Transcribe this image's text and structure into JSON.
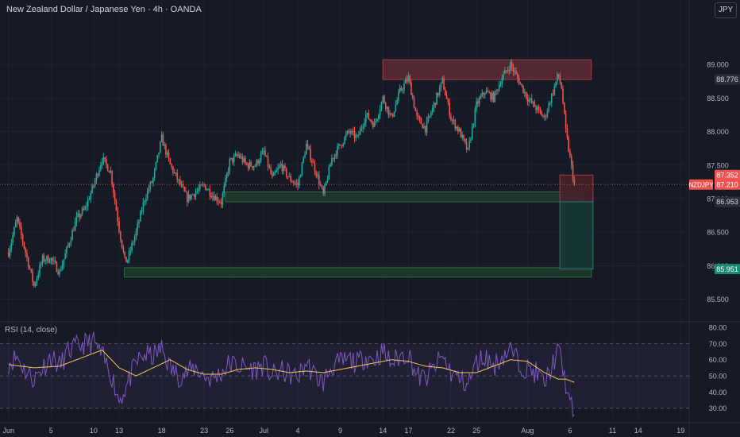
{
  "header": {
    "title": "New Zealand Dollar / Japanese Yen · 4h · OANDA",
    "currency_button": "JPY"
  },
  "colors": {
    "background": "#161a25",
    "up": "#26a69a",
    "down": "#ef5350",
    "grid": "#1f2330",
    "axis_text": "#b2b5be",
    "resistance_zone": "#5e2a34",
    "support_zone": "#1f3b2c",
    "target_zone": "#173a38",
    "stop_zone": "#4a2229",
    "rsi_line": "#7e57c2",
    "rsi_ma": "#f2c94c"
  },
  "chart_data": [
    {
      "type": "candlestick",
      "title": "New Zealand Dollar / Japanese Yen · 4h · OANDA",
      "symbol": "NZDJPY",
      "currency": "JPY",
      "y_ticks": [
        85.5,
        86.0,
        86.5,
        87.0,
        87.5,
        88.0,
        88.5,
        89.0
      ],
      "y_tick_labels": [
        "85.500",
        "86.000",
        "86.500",
        "87.000",
        "87.500",
        "88.000",
        "88.500",
        "89.000"
      ],
      "ylim": [
        85.2,
        89.7
      ],
      "x_tick_labels": [
        "Jun",
        "5",
        "10",
        "13",
        "18",
        "23",
        "26",
        "Jul",
        "4",
        "9",
        "14",
        "17",
        "22",
        "25",
        "Aug",
        "6",
        "11",
        "14",
        "19"
      ],
      "x_tick_days": [
        0,
        5,
        10,
        13,
        18,
        23,
        26,
        30,
        34,
        39,
        44,
        47,
        52,
        55,
        61,
        66,
        71,
        74,
        79
      ],
      "price_labels": [
        {
          "text": "88.776",
          "value": 88.776,
          "style": "neutral"
        },
        {
          "text": "87.352",
          "value": 87.352,
          "style": "down"
        },
        {
          "text": "87.210",
          "value": 87.21,
          "style": "down",
          "tag": "NZDJPY"
        },
        {
          "text": "86.953",
          "value": 86.953,
          "style": "neutral"
        },
        {
          "text": "85.951",
          "value": 85.951,
          "style": "up"
        }
      ],
      "last_price": 87.21,
      "zones": [
        {
          "name": "resistance",
          "start_day": 44,
          "end_day": 68.5,
          "low": 88.776,
          "high": 89.07
        },
        {
          "name": "support-upper",
          "start_day": 25.5,
          "end_day": 67.5,
          "low": 86.953,
          "high": 87.1
        },
        {
          "name": "support-lower",
          "start_day": 13.6,
          "end_day": 68.5,
          "low": 85.83,
          "high": 85.97
        },
        {
          "name": "stop",
          "start_day": 64.8,
          "end_day": 68.7,
          "low": 86.953,
          "high": 87.352
        },
        {
          "name": "target",
          "start_day": 64.8,
          "end_day": 68.7,
          "low": 85.951,
          "high": 86.953
        }
      ],
      "close_path": [
        [
          0,
          86.2
        ],
        [
          1,
          86.7
        ],
        [
          2,
          86.2
        ],
        [
          3,
          85.7
        ],
        [
          4,
          86.1
        ],
        [
          5,
          86.1
        ],
        [
          6,
          85.9
        ],
        [
          7,
          86.3
        ],
        [
          8,
          86.7
        ],
        [
          9,
          86.85
        ],
        [
          10,
          87.2
        ],
        [
          11,
          87.6
        ],
        [
          12,
          87.4
        ],
        [
          13,
          86.55
        ],
        [
          13.7,
          86.05
        ],
        [
          14,
          86.1
        ],
        [
          15,
          86.5
        ],
        [
          16,
          87.0
        ],
        [
          17,
          87.3
        ],
        [
          18,
          87.9
        ],
        [
          19,
          87.5
        ],
        [
          20,
          87.25
        ],
        [
          21,
          87.0
        ],
        [
          22,
          87.1
        ],
        [
          23,
          87.2
        ],
        [
          24,
          87.05
        ],
        [
          25,
          86.95
        ],
        [
          26,
          87.55
        ],
        [
          27,
          87.65
        ],
        [
          28,
          87.5
        ],
        [
          29,
          87.5
        ],
        [
          30,
          87.7
        ],
        [
          31,
          87.3
        ],
        [
          32,
          87.5
        ],
        [
          33,
          87.3
        ],
        [
          34,
          87.2
        ],
        [
          35,
          87.8
        ],
        [
          36,
          87.45
        ],
        [
          37,
          87.05
        ],
        [
          38,
          87.6
        ],
        [
          39,
          87.8
        ],
        [
          40,
          88.0
        ],
        [
          41,
          87.9
        ],
        [
          42,
          88.25
        ],
        [
          43,
          88.1
        ],
        [
          44,
          88.5
        ],
        [
          45,
          88.2
        ],
        [
          46,
          88.6
        ],
        [
          47,
          88.8
        ],
        [
          48,
          88.2
        ],
        [
          49,
          88.05
        ],
        [
          50,
          88.4
        ],
        [
          51,
          88.75
        ],
        [
          52,
          88.2
        ],
        [
          53,
          88.0
        ],
        [
          54,
          87.7
        ],
        [
          55,
          88.4
        ],
        [
          56,
          88.6
        ],
        [
          57,
          88.5
        ],
        [
          58,
          88.8
        ],
        [
          59,
          89.0
        ],
        [
          60,
          88.75
        ],
        [
          61,
          88.5
        ],
        [
          62,
          88.35
        ],
        [
          63,
          88.2
        ],
        [
          64,
          88.6
        ],
        [
          64.6,
          88.85
        ],
        [
          65,
          88.65
        ],
        [
          65.5,
          88.0
        ],
        [
          66,
          87.6
        ],
        [
          66.5,
          87.21
        ]
      ]
    },
    {
      "type": "line",
      "title": "RSI (14, close)",
      "y_ticks": [
        30,
        40,
        50,
        60,
        70,
        80
      ],
      "y_tick_labels": [
        "30.00",
        "40.00",
        "50.00",
        "60.00",
        "70.00",
        "80.00"
      ],
      "ylim": [
        22,
        82
      ],
      "band": [
        30,
        70
      ],
      "mid": 50,
      "series": [
        {
          "values_path": [
            [
              0,
              58
            ],
            [
              1,
              62
            ],
            [
              2,
              53
            ],
            [
              3,
              48
            ],
            [
              4,
              55
            ],
            [
              5,
              62
            ],
            [
              6,
              56
            ],
            [
              7,
              65
            ],
            [
              8,
              68
            ],
            [
              9,
              70
            ],
            [
              10,
              71
            ],
            [
              11,
              62
            ],
            [
              12,
              52
            ],
            [
              13,
              35
            ],
            [
              14,
              45
            ],
            [
              15,
              58
            ],
            [
              16,
              63
            ],
            [
              17,
              62
            ],
            [
              18,
              67
            ],
            [
              19,
              55
            ],
            [
              20,
              50
            ],
            [
              21,
              52
            ],
            [
              22,
              55
            ],
            [
              23,
              50
            ],
            [
              24,
              48
            ],
            [
              25,
              52
            ],
            [
              26,
              58
            ],
            [
              27,
              56
            ],
            [
              28,
              55
            ],
            [
              29,
              54
            ],
            [
              30,
              57
            ],
            [
              31,
              50
            ],
            [
              32,
              53
            ],
            [
              33,
              51
            ],
            [
              34,
              49
            ],
            [
              35,
              58
            ],
            [
              36,
              50
            ],
            [
              37,
              46
            ],
            [
              38,
              56
            ],
            [
              39,
              58
            ],
            [
              40,
              60
            ],
            [
              41,
              58
            ],
            [
              42,
              62
            ],
            [
              43,
              60
            ],
            [
              44,
              65
            ],
            [
              45,
              58
            ],
            [
              46,
              62
            ],
            [
              47,
              64
            ],
            [
              48,
              50
            ],
            [
              49,
              48
            ],
            [
              50,
              55
            ],
            [
              51,
              62
            ],
            [
              52,
              52
            ],
            [
              53,
              48
            ],
            [
              54,
              45
            ],
            [
              55,
              58
            ],
            [
              56,
              62
            ],
            [
              57,
              56
            ],
            [
              58,
              62
            ],
            [
              59,
              66
            ],
            [
              60,
              58
            ],
            [
              61,
              54
            ],
            [
              62,
              52
            ],
            [
              63,
              45
            ],
            [
              64,
              58
            ],
            [
              64.6,
              66
            ],
            [
              65,
              58
            ],
            [
              65.5,
              45
            ],
            [
              66,
              32
            ],
            [
              66.5,
              26
            ]
          ]
        },
        {
          "values_path": [
            [
              0,
              57
            ],
            [
              3,
              55
            ],
            [
              6,
              56
            ],
            [
              9,
              62
            ],
            [
              11,
              66
            ],
            [
              13,
              55
            ],
            [
              15,
              50
            ],
            [
              17,
              55
            ],
            [
              19,
              60
            ],
            [
              21,
              54
            ],
            [
              23,
              51
            ],
            [
              25,
              51
            ],
            [
              27,
              54
            ],
            [
              29,
              55
            ],
            [
              31,
              54
            ],
            [
              33,
              52
            ],
            [
              35,
              53
            ],
            [
              37,
              52
            ],
            [
              39,
              54
            ],
            [
              41,
              56
            ],
            [
              43,
              58
            ],
            [
              45,
              60
            ],
            [
              47,
              59
            ],
            [
              49,
              56
            ],
            [
              51,
              55
            ],
            [
              53,
              52
            ],
            [
              55,
              52
            ],
            [
              57,
              56
            ],
            [
              59,
              60
            ],
            [
              61,
              59
            ],
            [
              63,
              52
            ],
            [
              64.6,
              48
            ],
            [
              65.5,
              48
            ],
            [
              66.5,
              46
            ]
          ]
        }
      ],
      "x_range": [
        -1,
        80
      ]
    }
  ]
}
